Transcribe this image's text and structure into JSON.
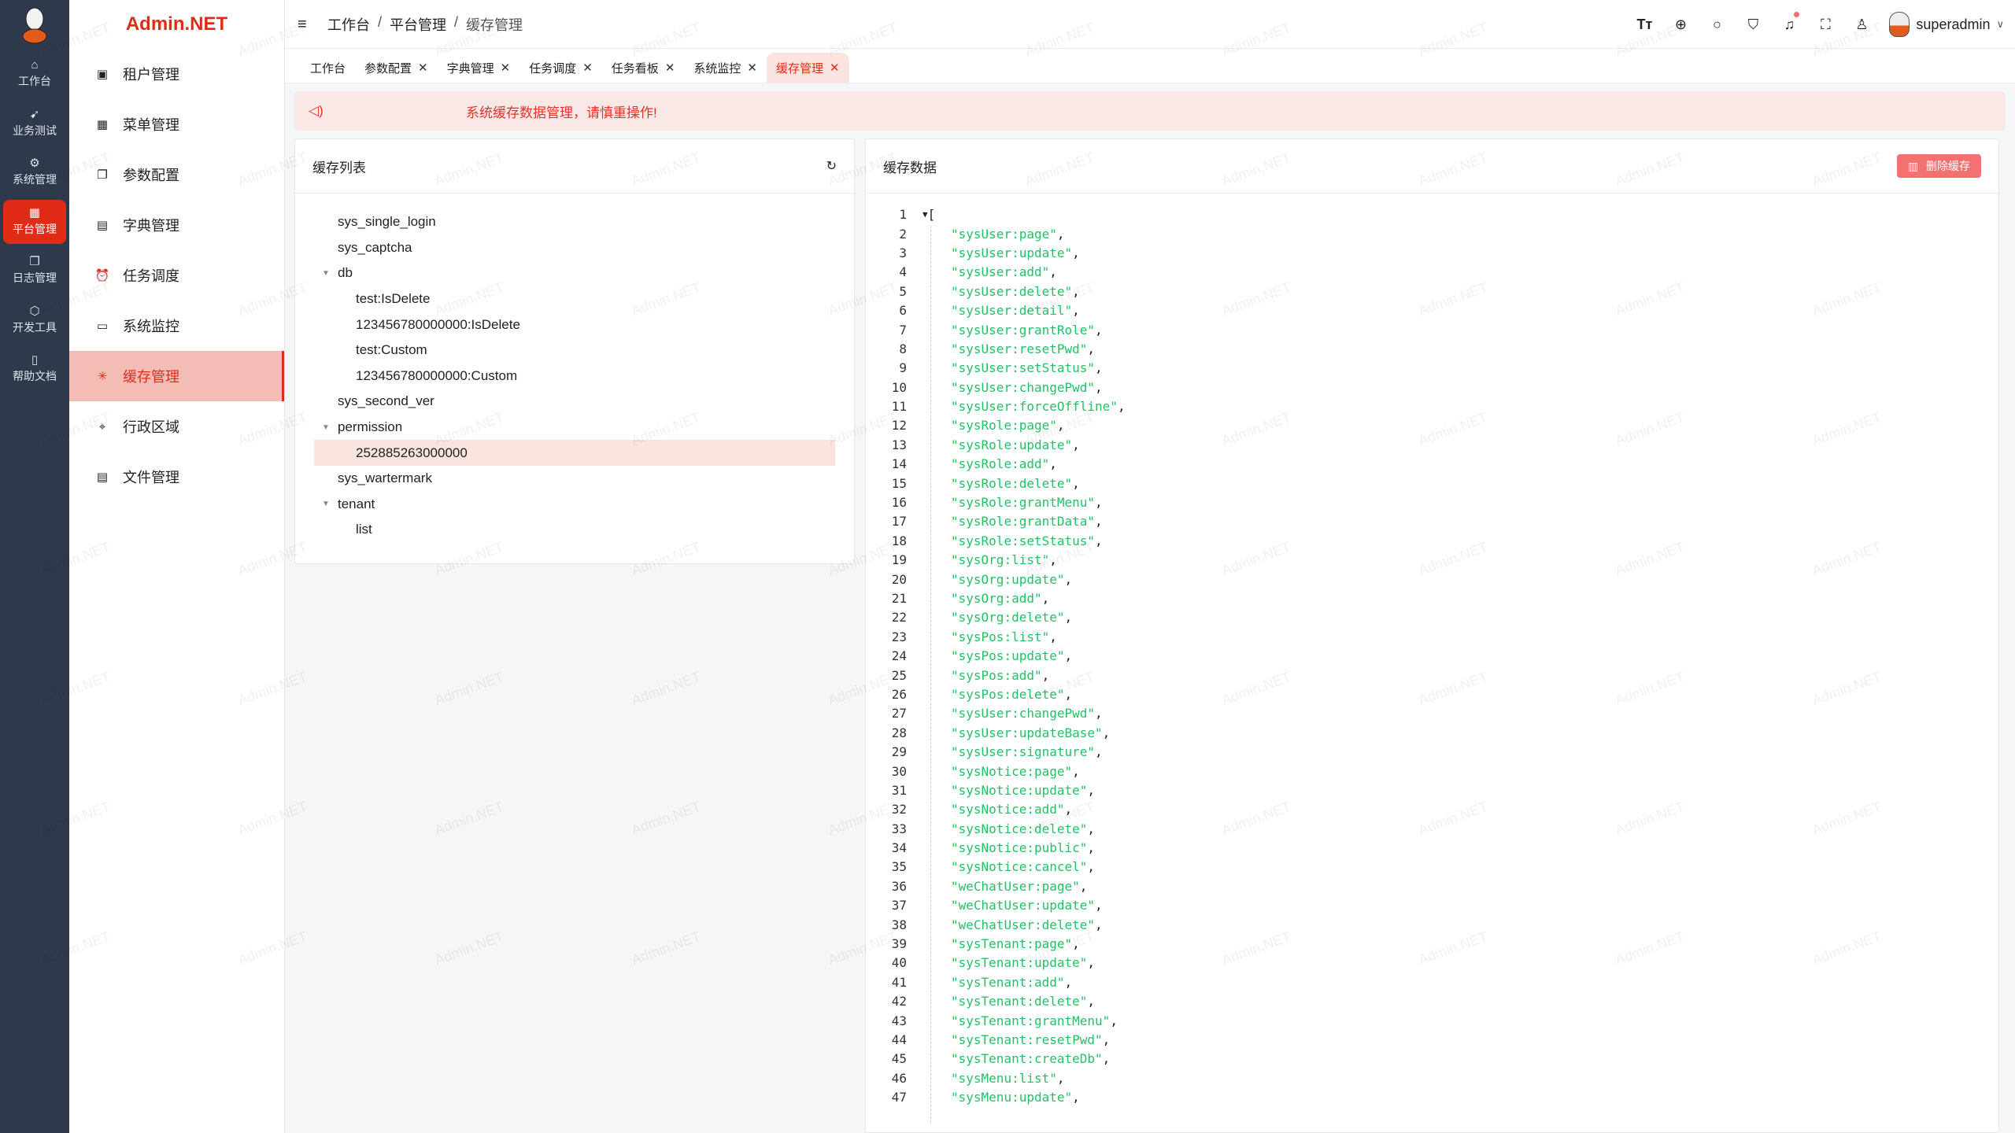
{
  "rail": {
    "items": [
      {
        "label": "工作台",
        "icon": "home-icon",
        "glyph": "⌂"
      },
      {
        "label": "业务测试",
        "icon": "send-icon",
        "glyph": "➹"
      },
      {
        "label": "系统管理",
        "icon": "gear-icon",
        "glyph": "⚙"
      },
      {
        "label": "平台管理",
        "icon": "grid-icon",
        "glyph": "▦",
        "active": true
      },
      {
        "label": "日志管理",
        "icon": "document-copy-icon",
        "glyph": "❐"
      },
      {
        "label": "开发工具",
        "icon": "cpu-icon",
        "glyph": "⬡"
      },
      {
        "label": "帮助文档",
        "icon": "notebook-icon",
        "glyph": "▯"
      }
    ]
  },
  "brand": "Admin.NET",
  "submenu": {
    "items": [
      {
        "label": "租户管理",
        "glyph": "▣"
      },
      {
        "label": "菜单管理",
        "glyph": "▦"
      },
      {
        "label": "参数配置",
        "glyph": "❐"
      },
      {
        "label": "字典管理",
        "glyph": "▤"
      },
      {
        "label": "任务调度",
        "glyph": "⏰"
      },
      {
        "label": "系统监控",
        "glyph": "▭"
      },
      {
        "label": "缓存管理",
        "glyph": "✳",
        "active": true
      },
      {
        "label": "行政区域",
        "glyph": "⌖"
      },
      {
        "label": "文件管理",
        "glyph": "▤"
      }
    ]
  },
  "breadcrumb": [
    "工作台",
    "平台管理",
    "缓存管理"
  ],
  "user": {
    "name": "superadmin"
  },
  "tabs": [
    {
      "label": "工作台",
      "closable": false
    },
    {
      "label": "参数配置",
      "closable": true
    },
    {
      "label": "字典管理",
      "closable": true
    },
    {
      "label": "任务调度",
      "closable": true
    },
    {
      "label": "任务看板",
      "closable": true
    },
    {
      "label": "系统监控",
      "closable": true
    },
    {
      "label": "缓存管理",
      "closable": true,
      "active": true
    }
  ],
  "alert": "系统缓存数据管理，请慎重操作!",
  "cache_list": {
    "title": "缓存列表",
    "tree": [
      {
        "label": "sys_single_login",
        "level": 1
      },
      {
        "label": "sys_captcha",
        "level": 1
      },
      {
        "label": "db",
        "level": 1,
        "expanded": true
      },
      {
        "label": "test:IsDelete",
        "level": 2
      },
      {
        "label": "123456780000000:IsDelete",
        "level": 2
      },
      {
        "label": "test:Custom",
        "level": 2
      },
      {
        "label": "123456780000000:Custom",
        "level": 2
      },
      {
        "label": "sys_second_ver",
        "level": 1
      },
      {
        "label": "permission",
        "level": 1,
        "expanded": true
      },
      {
        "label": "252885263000000",
        "level": 2,
        "selected": true
      },
      {
        "label": "sys_wartermark",
        "level": 1
      },
      {
        "label": "tenant",
        "level": 1,
        "expanded": true
      },
      {
        "label": "list",
        "level": 2
      }
    ]
  },
  "cache_data": {
    "title": "缓存数据",
    "delete_label": "删除缓存",
    "open": "[",
    "items": [
      "sysUser:page",
      "sysUser:update",
      "sysUser:add",
      "sysUser:delete",
      "sysUser:detail",
      "sysUser:grantRole",
      "sysUser:resetPwd",
      "sysUser:setStatus",
      "sysUser:changePwd",
      "sysUser:forceOffline",
      "sysRole:page",
      "sysRole:update",
      "sysRole:add",
      "sysRole:delete",
      "sysRole:grantMenu",
      "sysRole:grantData",
      "sysRole:setStatus",
      "sysOrg:list",
      "sysOrg:update",
      "sysOrg:add",
      "sysOrg:delete",
      "sysPos:list",
      "sysPos:update",
      "sysPos:add",
      "sysPos:delete",
      "sysUser:changePwd",
      "sysUser:updateBase",
      "sysUser:signature",
      "sysNotice:page",
      "sysNotice:update",
      "sysNotice:add",
      "sysNotice:delete",
      "sysNotice:public",
      "sysNotice:cancel",
      "weChatUser:page",
      "weChatUser:update",
      "weChatUser:delete",
      "sysTenant:page",
      "sysTenant:update",
      "sysTenant:add",
      "sysTenant:delete",
      "sysTenant:grantMenu",
      "sysTenant:resetPwd",
      "sysTenant:createDb",
      "sysMenu:list",
      "sysMenu:update"
    ]
  },
  "watermark": "Admin.NET",
  "colors": {
    "accent": "#e02c17",
    "rail": "#2e3a4c",
    "string": "#21c266",
    "alert_bg": "#fae8e7"
  }
}
